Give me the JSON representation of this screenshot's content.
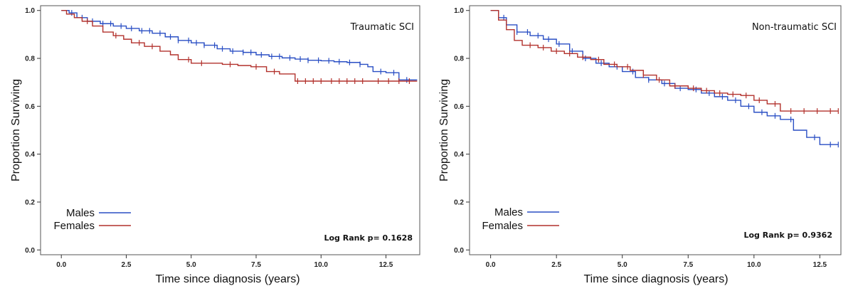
{
  "chart_data": [
    {
      "type": "line",
      "subtype": "kaplan-meier",
      "title": "Traumatic SCI",
      "xlabel": "Time since diagnosis (years)",
      "ylabel": "Proportion Surviving",
      "xlim": [
        -0.8,
        13.8
      ],
      "ylim": [
        -0.02,
        1.02
      ],
      "xticks": [
        "0.0",
        "2.5",
        "5.0",
        "7.5",
        "10.0",
        "12.5"
      ],
      "yticks": [
        "0.0",
        "0.2",
        "0.4",
        "0.6",
        "0.8",
        "1.0"
      ],
      "annotation": "Log Rank p= 0.1628",
      "legend_position": "bottom-left",
      "series": [
        {
          "name": "Males",
          "color": "#2a4fc4",
          "x": [
            0.0,
            0.3,
            0.6,
            1.0,
            1.5,
            2.0,
            2.5,
            3.0,
            3.5,
            4.0,
            4.5,
            5.0,
            5.5,
            6.0,
            6.5,
            7.0,
            7.5,
            8.0,
            8.5,
            9.0,
            9.5,
            10.0,
            10.5,
            11.0,
            11.5,
            11.8,
            12.0,
            12.5,
            13.0,
            13.7
          ],
          "y": [
            1.0,
            0.99,
            0.97,
            0.955,
            0.945,
            0.935,
            0.925,
            0.915,
            0.905,
            0.89,
            0.875,
            0.865,
            0.855,
            0.84,
            0.83,
            0.825,
            0.815,
            0.808,
            0.802,
            0.797,
            0.792,
            0.79,
            0.786,
            0.783,
            0.775,
            0.765,
            0.745,
            0.74,
            0.71,
            0.71
          ],
          "censor_x": [
            0.4,
            0.8,
            1.2,
            1.6,
            1.9,
            2.3,
            2.7,
            3.1,
            3.4,
            3.8,
            4.2,
            4.5,
            4.9,
            5.2,
            5.5,
            5.9,
            6.2,
            6.6,
            7.0,
            7.3,
            7.7,
            8.1,
            8.4,
            8.8,
            9.2,
            9.5,
            9.9,
            10.3,
            10.7,
            11.1,
            11.5,
            12.3,
            12.8,
            13.3
          ]
        },
        {
          "name": "Females",
          "color": "#b2312c",
          "x": [
            0.0,
            0.2,
            0.5,
            0.8,
            1.2,
            1.6,
            2.0,
            2.4,
            2.7,
            3.2,
            3.8,
            4.2,
            4.5,
            5.0,
            5.8,
            6.2,
            6.8,
            7.3,
            7.9,
            8.4,
            9.0,
            10.0,
            11.0,
            12.0,
            12.5,
            13.7
          ],
          "y": [
            1.0,
            0.985,
            0.97,
            0.955,
            0.935,
            0.91,
            0.895,
            0.88,
            0.865,
            0.85,
            0.83,
            0.815,
            0.795,
            0.78,
            0.78,
            0.775,
            0.77,
            0.765,
            0.745,
            0.735,
            0.705,
            0.705,
            0.705,
            0.705,
            0.705,
            0.705
          ],
          "censor_x": [
            1.0,
            2.1,
            3.0,
            3.5,
            4.9,
            5.4,
            6.5,
            7.5,
            8.2,
            9.1,
            9.4,
            9.7,
            10.0,
            10.4,
            10.7,
            11.0,
            11.3,
            11.6,
            12.2,
            12.6,
            13.0,
            13.4
          ]
        }
      ]
    },
    {
      "type": "line",
      "subtype": "kaplan-meier",
      "title": "Non-traumatic SCI",
      "xlabel": "Time since diagnosis (years)",
      "ylabel": "Proportion Surviving",
      "xlim": [
        -0.8,
        13.3
      ],
      "ylim": [
        -0.02,
        1.02
      ],
      "xticks": [
        "0.0",
        "2.5",
        "5.0",
        "7.5",
        "10.0",
        "12.5"
      ],
      "yticks": [
        "0.0",
        "0.2",
        "0.4",
        "0.6",
        "0.8",
        "1.0"
      ],
      "annotation": "Log Rank p= 0.9362",
      "legend_position": "bottom-left",
      "series": [
        {
          "name": "Males",
          "color": "#2a4fc4",
          "x": [
            0.0,
            0.3,
            0.6,
            1.0,
            1.5,
            2.0,
            2.5,
            3.0,
            3.5,
            4.0,
            4.5,
            5.0,
            5.5,
            6.0,
            6.5,
            7.0,
            7.5,
            8.0,
            8.5,
            9.0,
            9.5,
            10.0,
            10.5,
            11.0,
            11.5,
            12.0,
            12.5,
            13.2
          ],
          "y": [
            1.0,
            0.97,
            0.94,
            0.91,
            0.895,
            0.88,
            0.86,
            0.83,
            0.8,
            0.78,
            0.765,
            0.745,
            0.72,
            0.71,
            0.695,
            0.675,
            0.67,
            0.655,
            0.64,
            0.625,
            0.6,
            0.575,
            0.56,
            0.545,
            0.5,
            0.47,
            0.44,
            0.44
          ],
          "censor_x": [
            0.5,
            1.0,
            1.4,
            1.8,
            2.2,
            2.6,
            3.1,
            3.6,
            4.2,
            4.8,
            5.4,
            6.0,
            6.6,
            7.2,
            7.8,
            8.3,
            8.8,
            9.3,
            9.8,
            10.3,
            10.8,
            11.4,
            12.3,
            12.9,
            13.2
          ]
        },
        {
          "name": "Females",
          "color": "#b2312c",
          "x": [
            0.0,
            0.3,
            0.6,
            0.9,
            1.2,
            1.8,
            2.3,
            2.8,
            3.3,
            3.8,
            4.3,
            4.8,
            5.3,
            5.8,
            6.3,
            6.8,
            7.5,
            8.0,
            8.5,
            9.0,
            9.5,
            10.0,
            10.5,
            11.0,
            11.5,
            12.0,
            12.5,
            13.2
          ],
          "y": [
            1.0,
            0.96,
            0.92,
            0.875,
            0.855,
            0.845,
            0.83,
            0.82,
            0.805,
            0.795,
            0.775,
            0.765,
            0.75,
            0.73,
            0.71,
            0.685,
            0.675,
            0.665,
            0.655,
            0.65,
            0.645,
            0.625,
            0.61,
            0.58,
            0.58,
            0.58,
            0.58,
            0.58
          ],
          "censor_x": [
            1.5,
            2.0,
            2.5,
            3.0,
            3.5,
            4.1,
            4.7,
            5.2,
            5.8,
            6.4,
            7.0,
            7.7,
            8.2,
            8.7,
            9.2,
            9.7,
            10.2,
            10.8,
            11.4,
            11.9,
            12.4,
            12.9,
            13.2
          ]
        }
      ]
    }
  ]
}
